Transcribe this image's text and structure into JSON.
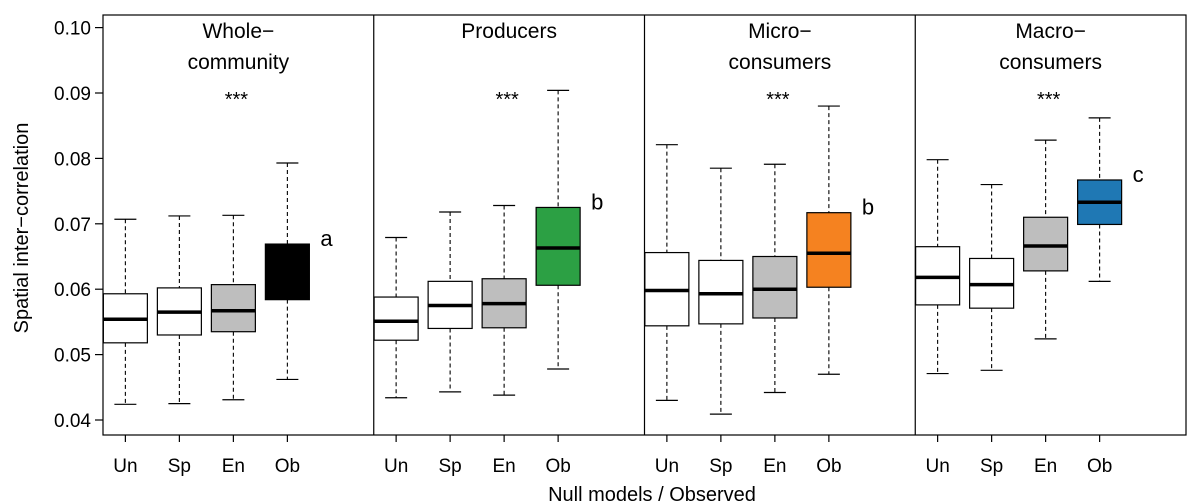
{
  "chart_data": {
    "type": "box",
    "ylabel": "Spatial inter−correlation",
    "xlabel": "Null models / Observed",
    "ylim": [
      0.04,
      0.1
    ],
    "yticks": [
      "0.04",
      "0.05",
      "0.06",
      "0.07",
      "0.08",
      "0.09",
      "0.10"
    ],
    "categories": [
      "Un",
      "Sp",
      "En",
      "Ob"
    ],
    "panels": [
      {
        "title_lines": [
          "Whole−",
          "community"
        ],
        "significance": "***",
        "letter": "a",
        "boxes": [
          {
            "category": "Un",
            "fill": "#ffffff",
            "min": 0.0424,
            "q1": 0.0518,
            "median": 0.0554,
            "q3": 0.0593,
            "max": 0.0707
          },
          {
            "category": "Sp",
            "fill": "#ffffff",
            "min": 0.0425,
            "q1": 0.053,
            "median": 0.0565,
            "q3": 0.0602,
            "max": 0.0712
          },
          {
            "category": "En",
            "fill": "#bebebe",
            "min": 0.0431,
            "q1": 0.0535,
            "median": 0.0567,
            "q3": 0.0607,
            "max": 0.0713
          },
          {
            "category": "Ob",
            "fill": "#000000",
            "min": 0.0462,
            "q1": 0.0584,
            "median": 0.063,
            "q3": 0.0669,
            "max": 0.0793
          }
        ]
      },
      {
        "title_lines": [
          "Producers"
        ],
        "significance": "***",
        "letter": "b",
        "boxes": [
          {
            "category": "Un",
            "fill": "#ffffff",
            "min": 0.0434,
            "q1": 0.0522,
            "median": 0.0551,
            "q3": 0.0588,
            "max": 0.0679
          },
          {
            "category": "Sp",
            "fill": "#ffffff",
            "min": 0.0443,
            "q1": 0.054,
            "median": 0.0575,
            "q3": 0.0612,
            "max": 0.0718
          },
          {
            "category": "En",
            "fill": "#bebebe",
            "min": 0.0438,
            "q1": 0.0541,
            "median": 0.0578,
            "q3": 0.0616,
            "max": 0.0728
          },
          {
            "category": "Ob",
            "fill": "#2ca044",
            "min": 0.0478,
            "q1": 0.0606,
            "median": 0.0663,
            "q3": 0.0725,
            "max": 0.0904
          }
        ]
      },
      {
        "title_lines": [
          "Micro−",
          "consumers"
        ],
        "significance": "***",
        "letter": "b",
        "boxes": [
          {
            "category": "Un",
            "fill": "#ffffff",
            "min": 0.043,
            "q1": 0.0544,
            "median": 0.0598,
            "q3": 0.0656,
            "max": 0.0821
          },
          {
            "category": "Sp",
            "fill": "#ffffff",
            "min": 0.0409,
            "q1": 0.0547,
            "median": 0.0593,
            "q3": 0.0644,
            "max": 0.0785
          },
          {
            "category": "En",
            "fill": "#bebebe",
            "min": 0.0442,
            "q1": 0.0556,
            "median": 0.06,
            "q3": 0.065,
            "max": 0.0791
          },
          {
            "category": "Ob",
            "fill": "#f58220",
            "min": 0.047,
            "q1": 0.0603,
            "median": 0.0655,
            "q3": 0.0717,
            "max": 0.088
          }
        ]
      },
      {
        "title_lines": [
          "Macro−",
          "consumers"
        ],
        "significance": "***",
        "letter": "c",
        "boxes": [
          {
            "category": "Un",
            "fill": "#ffffff",
            "min": 0.0471,
            "q1": 0.0576,
            "median": 0.0618,
            "q3": 0.0665,
            "max": 0.0798
          },
          {
            "category": "Sp",
            "fill": "#ffffff",
            "min": 0.0476,
            "q1": 0.0571,
            "median": 0.0607,
            "q3": 0.0647,
            "max": 0.076
          },
          {
            "category": "En",
            "fill": "#bebebe",
            "min": 0.0524,
            "q1": 0.0628,
            "median": 0.0666,
            "q3": 0.071,
            "max": 0.0828
          },
          {
            "category": "Ob",
            "fill": "#1f78b4",
            "min": 0.0612,
            "q1": 0.0699,
            "median": 0.0733,
            "q3": 0.0767,
            "max": 0.0862
          }
        ]
      }
    ]
  }
}
